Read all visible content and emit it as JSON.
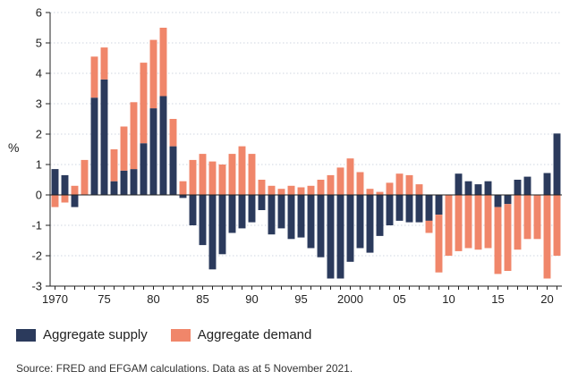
{
  "chart_data": {
    "type": "bar",
    "stacked": true,
    "ylabel": "%",
    "ylim": [
      -3,
      6
    ],
    "yticks": [
      -3,
      -2,
      -1,
      0,
      1,
      2,
      3,
      4,
      5,
      6
    ],
    "x": [
      1970,
      1971,
      1972,
      1973,
      1974,
      1975,
      1976,
      1977,
      1978,
      1979,
      1980,
      1981,
      1982,
      1983,
      1984,
      1985,
      1986,
      1987,
      1988,
      1989,
      1990,
      1991,
      1992,
      1993,
      1994,
      1995,
      1996,
      1997,
      1998,
      1999,
      2000,
      2001,
      2002,
      2003,
      2004,
      2005,
      2006,
      2007,
      2008,
      2009,
      2010,
      2011,
      2012,
      2013,
      2014,
      2015,
      2016,
      2017,
      2018,
      2019,
      2020,
      2021
    ],
    "xtick_labels": [
      {
        "year": 1970,
        "label": "1970"
      },
      {
        "year": 1975,
        "label": "75"
      },
      {
        "year": 1980,
        "label": "80"
      },
      {
        "year": 1985,
        "label": "85"
      },
      {
        "year": 1990,
        "label": "90"
      },
      {
        "year": 1995,
        "label": "95"
      },
      {
        "year": 2000,
        "label": "2000"
      },
      {
        "year": 2005,
        "label": "05"
      },
      {
        "year": 2010,
        "label": "10"
      },
      {
        "year": 2015,
        "label": "15"
      },
      {
        "year": 2020,
        "label": "20"
      }
    ],
    "series": [
      {
        "name": "Aggregate supply",
        "color": "#2b3a5c",
        "values": [
          0.85,
          0.65,
          -0.4,
          0,
          3.2,
          3.8,
          0.45,
          0.8,
          0.85,
          1.7,
          2.85,
          3.25,
          1.6,
          -0.1,
          -1.0,
          -1.65,
          -2.45,
          -1.95,
          -1.25,
          -1.1,
          -0.9,
          -0.5,
          -1.3,
          -1.1,
          -1.45,
          -1.4,
          -1.75,
          -2.05,
          -2.75,
          -2.75,
          -2.2,
          -1.75,
          -1.9,
          -1.35,
          -1.0,
          -0.85,
          -0.9,
          -0.9,
          -0.85,
          -0.65,
          0,
          0.7,
          0.45,
          0.35,
          0.45,
          -0.4,
          -0.3,
          0.5,
          0.6,
          0,
          0.72,
          2.02
        ]
      },
      {
        "name": "Aggregate demand",
        "color": "#f0866a",
        "values": [
          -0.4,
          -0.25,
          0.3,
          1.15,
          1.35,
          1.05,
          1.05,
          1.45,
          2.2,
          2.65,
          2.25,
          2.25,
          0.9,
          0.45,
          1.15,
          1.35,
          1.1,
          1.0,
          1.35,
          1.6,
          1.35,
          0.5,
          0.3,
          0.2,
          0.3,
          0.25,
          0.3,
          0.5,
          0.65,
          0.9,
          1.2,
          0.75,
          0.2,
          0.1,
          0.4,
          0.7,
          0.65,
          0.35,
          -0.4,
          -1.9,
          -2.0,
          -1.85,
          -1.75,
          -1.8,
          -1.75,
          -2.2,
          -2.2,
          -1.8,
          -1.45,
          -1.45,
          -2.75,
          -2.0
        ]
      }
    ]
  },
  "legend": {
    "supply_label": "Aggregate supply",
    "demand_label": "Aggregate demand"
  },
  "source_text": "Source: FRED and EFGAM calculations. Data as at 5 November 2021."
}
